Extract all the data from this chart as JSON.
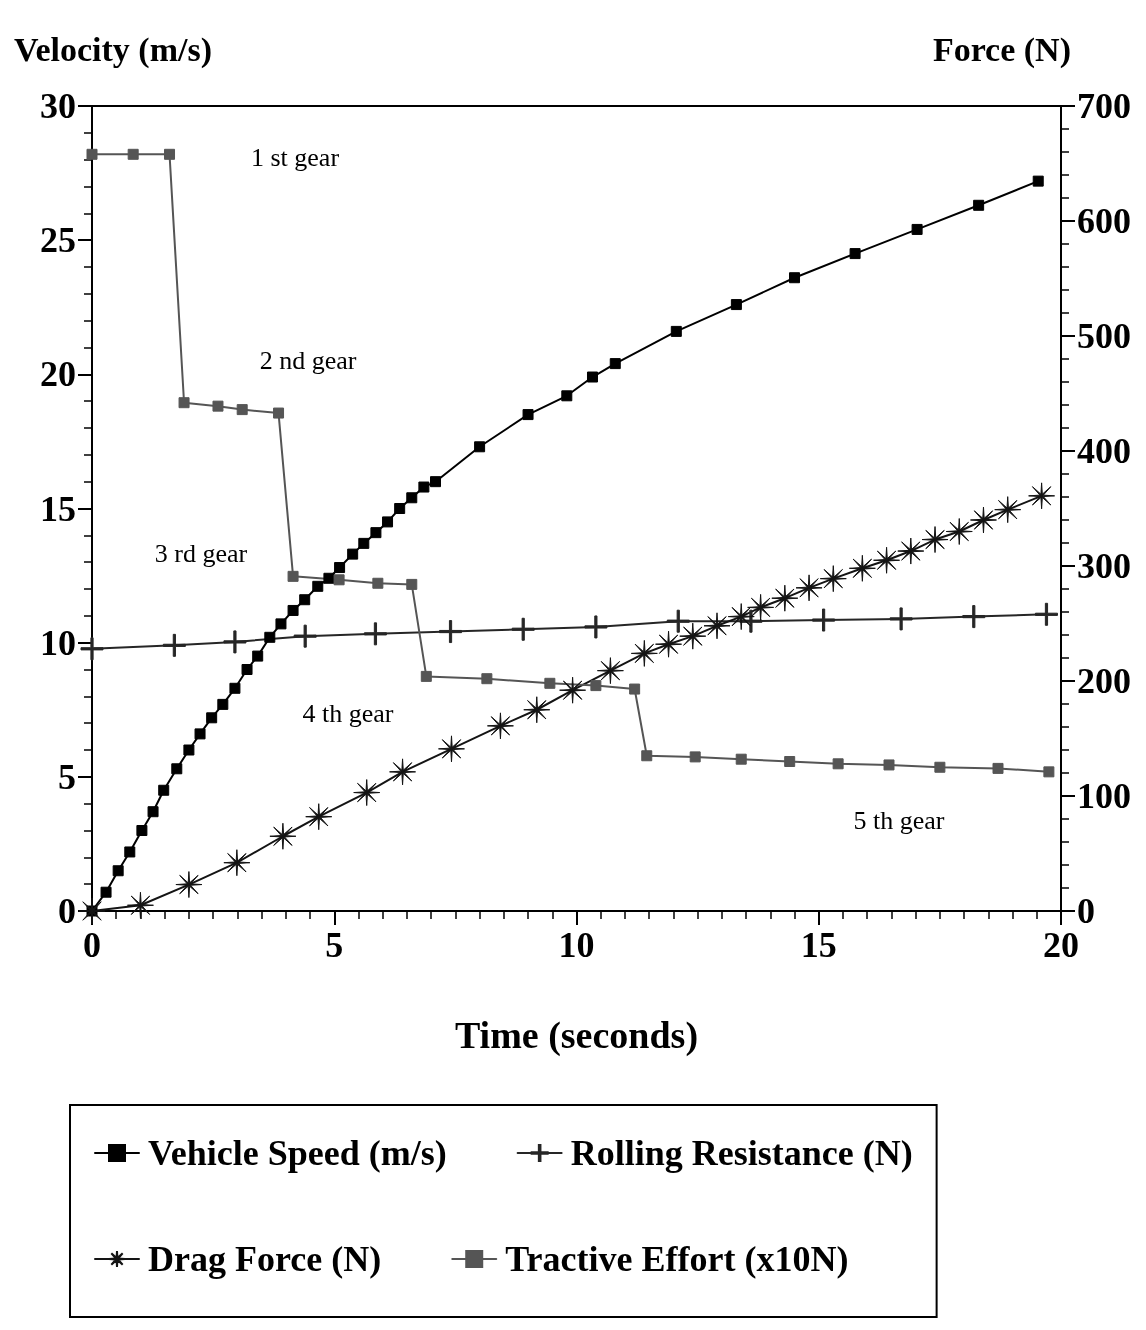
{
  "chart_data": {
    "type": "line",
    "xlabel": "Time (seconds)",
    "ylabel": "Velocity (m/s)",
    "y2label": "Force (N)",
    "xlim": [
      0,
      20
    ],
    "xticks": [
      0,
      5,
      10,
      15,
      20
    ],
    "ylim": [
      0,
      30
    ],
    "yticks": [
      0,
      5,
      10,
      15,
      20,
      25,
      30
    ],
    "y2lim": [
      0,
      700
    ],
    "y2ticks": [
      0,
      100,
      200,
      300,
      400,
      500,
      600,
      700
    ],
    "grid": false,
    "legend": "bottom",
    "series": [
      {
        "name": "Vehicle Speed (m/s)",
        "color": "#000000",
        "marker": "square",
        "x": [
          0,
          0.29,
          0.54,
          0.78,
          1.03,
          1.26,
          1.48,
          1.75,
          2.0,
          2.23,
          2.47,
          2.7,
          2.95,
          3.2,
          3.42,
          3.67,
          3.9,
          4.15,
          4.39,
          4.66,
          4.89,
          5.11,
          5.38,
          5.61,
          5.86,
          6.1,
          6.35,
          6.6,
          6.85,
          7.09,
          8.0,
          9.0,
          9.8,
          10.33,
          10.8,
          12.06,
          13.3,
          14.5,
          15.75,
          17.03,
          18.3,
          19.53
        ],
        "values": [
          0,
          0.7,
          1.5,
          2.2,
          3.0,
          3.7,
          4.5,
          5.3,
          6.0,
          6.6,
          7.2,
          7.7,
          8.3,
          9.0,
          9.5,
          10.2,
          10.7,
          11.2,
          11.6,
          12.1,
          12.4,
          12.8,
          13.3,
          13.7,
          14.1,
          14.5,
          15.0,
          15.4,
          15.8,
          16.0,
          17.3,
          18.5,
          19.2,
          19.9,
          20.4,
          21.6,
          22.6,
          23.6,
          24.5,
          25.4,
          26.3,
          27.2
        ]
      },
      {
        "name": "Rolling Resistance (N)",
        "color": "#262626",
        "marker": "cross",
        "axis": "y2",
        "x": [
          0,
          1.7,
          2.95,
          4.4,
          5.85,
          7.4,
          8.9,
          10.4,
          12.1,
          13.6,
          15.1,
          16.7,
          18.2,
          19.7
        ],
        "values": [
          228,
          231,
          234,
          239,
          241,
          243,
          245,
          247,
          252,
          252,
          253,
          254,
          256,
          258
        ]
      },
      {
        "name": "Drag Force (N)",
        "color": "#141414",
        "marker": "star",
        "axis": "y2",
        "x": [
          0,
          1.0,
          2.0,
          2.99,
          3.94,
          4.68,
          5.67,
          6.41,
          7.42,
          8.43,
          9.18,
          9.92,
          10.7,
          11.4,
          11.9,
          12.4,
          12.9,
          13.4,
          13.8,
          14.3,
          14.8,
          15.3,
          15.9,
          16.4,
          16.9,
          17.4,
          17.9,
          18.4,
          18.9,
          19.6
        ],
        "values": [
          0,
          5,
          23,
          42,
          65,
          82,
          103,
          121,
          141,
          161,
          175,
          192,
          209,
          224,
          232,
          239,
          248,
          256,
          264,
          272,
          281,
          289,
          298,
          305,
          313,
          323,
          330,
          340,
          349,
          361
        ]
      },
      {
        "name": "Tractive Effort (x10N)",
        "color": "#555555",
        "marker": "square",
        "axis": "y2",
        "x": [
          0,
          0.85,
          1.6,
          1.9,
          2.6,
          3.1,
          3.85,
          4.15,
          5.1,
          5.9,
          6.6,
          6.9,
          8.15,
          9.45,
          10.4,
          11.2,
          11.45,
          12.45,
          13.4,
          14.4,
          15.4,
          16.45,
          17.5,
          18.7,
          19.75
        ],
        "values": [
          658,
          658,
          658,
          442,
          439,
          436,
          433,
          291,
          288,
          285,
          284,
          204,
          202,
          198,
          196,
          193,
          135,
          134,
          132,
          130,
          128,
          127,
          125,
          124,
          121
        ]
      }
    ],
    "annotations": [
      "1 st gear",
      "2 nd gear",
      "3 rd gear",
      "4 th gear",
      "5 th gear"
    ]
  }
}
